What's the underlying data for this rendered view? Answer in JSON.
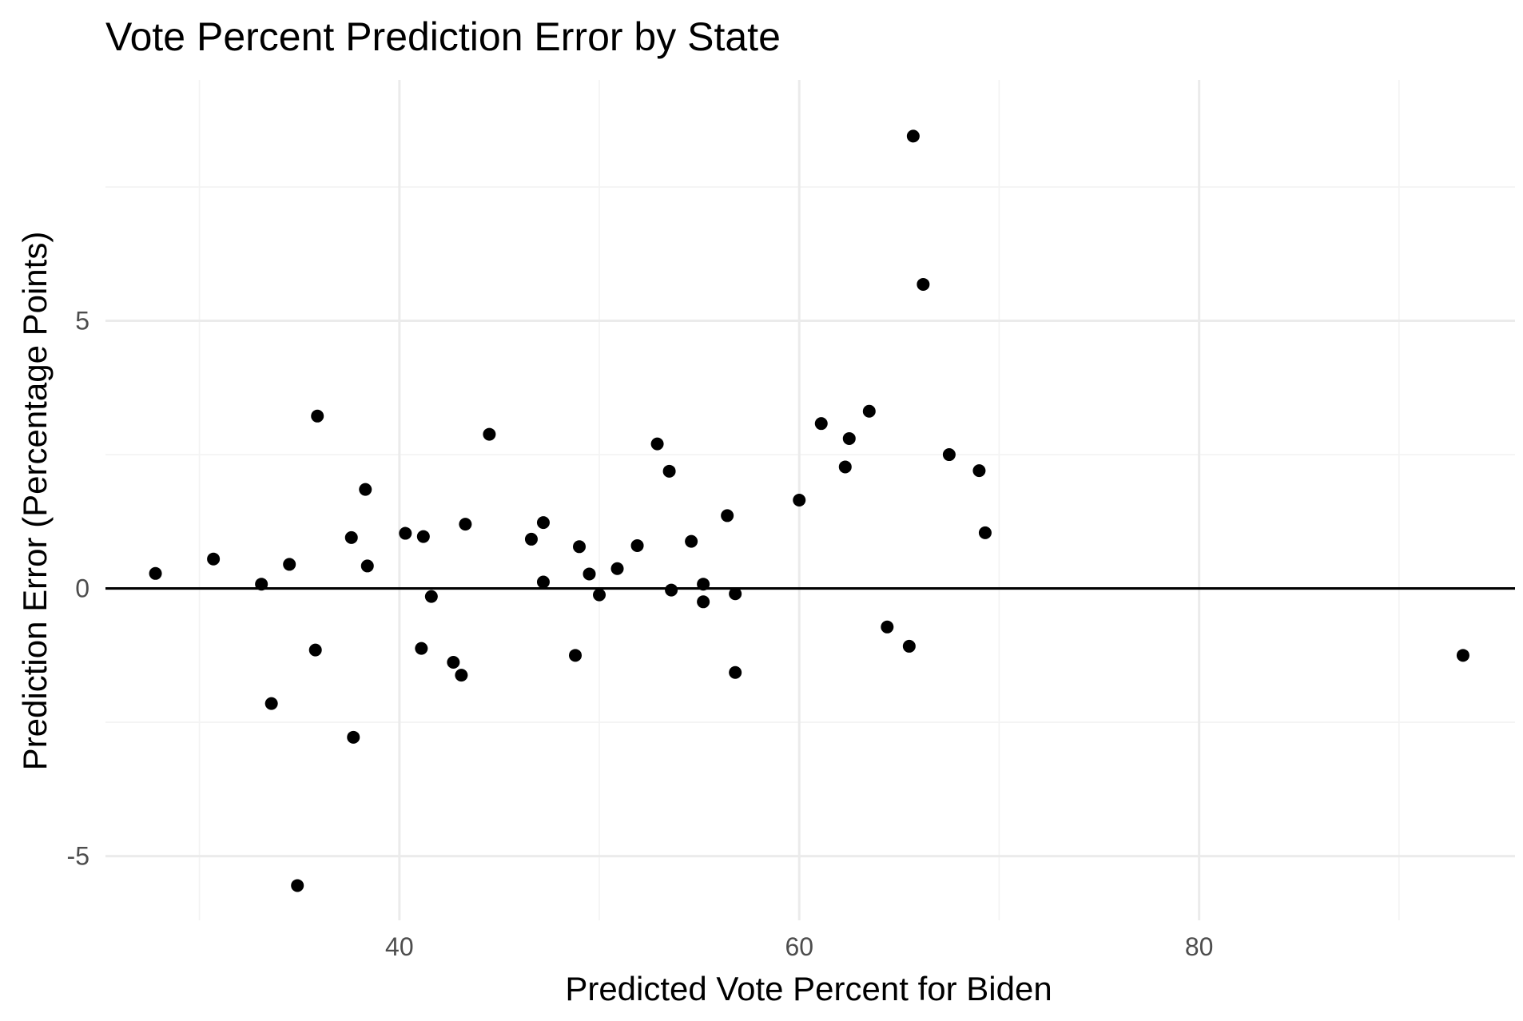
{
  "chart_data": {
    "type": "scatter",
    "title": "Vote Percent Prediction Error by State",
    "xlabel": "Predicted Vote Percent for Biden",
    "ylabel": "Prediction Error (Percentage Points)",
    "xlim": [
      25.3,
      95.8
    ],
    "ylim": [
      -6.2,
      9.5
    ],
    "x_ticks": [
      40,
      60,
      80
    ],
    "x_tick_labels": [
      "40",
      "60",
      "80"
    ],
    "y_ticks": [
      -5,
      0,
      5
    ],
    "y_tick_labels": [
      "-5",
      "0",
      "5"
    ],
    "x_minor_grid": [
      30,
      50,
      70,
      90
    ],
    "y_minor_grid": [
      -2.5,
      2.5,
      7.5
    ],
    "grid": true,
    "reference_line": {
      "y": 0,
      "color": "#000000"
    },
    "point_color": "#000000",
    "background": "#ffffff",
    "points": [
      {
        "x": 27.8,
        "y": 0.28
      },
      {
        "x": 30.7,
        "y": 0.55
      },
      {
        "x": 33.1,
        "y": 0.08
      },
      {
        "x": 33.6,
        "y": -2.15
      },
      {
        "x": 34.5,
        "y": 0.45
      },
      {
        "x": 34.9,
        "y": -5.55
      },
      {
        "x": 35.8,
        "y": -1.15
      },
      {
        "x": 35.9,
        "y": 3.22
      },
      {
        "x": 37.6,
        "y": 0.95
      },
      {
        "x": 37.7,
        "y": -2.78
      },
      {
        "x": 38.3,
        "y": 1.85
      },
      {
        "x": 38.4,
        "y": 0.42
      },
      {
        "x": 40.3,
        "y": 1.03
      },
      {
        "x": 41.1,
        "y": -1.12
      },
      {
        "x": 41.2,
        "y": 0.97
      },
      {
        "x": 41.6,
        "y": -0.15
      },
      {
        "x": 42.7,
        "y": -1.38
      },
      {
        "x": 43.1,
        "y": -1.62
      },
      {
        "x": 43.3,
        "y": 1.2
      },
      {
        "x": 44.5,
        "y": 2.88
      },
      {
        "x": 46.6,
        "y": 0.92
      },
      {
        "x": 47.2,
        "y": 1.23
      },
      {
        "x": 47.2,
        "y": 0.12
      },
      {
        "x": 48.8,
        "y": -1.25
      },
      {
        "x": 49.0,
        "y": 0.78
      },
      {
        "x": 49.5,
        "y": 0.27
      },
      {
        "x": 50.0,
        "y": -0.12
      },
      {
        "x": 50.9,
        "y": 0.37
      },
      {
        "x": 51.9,
        "y": 0.8
      },
      {
        "x": 52.9,
        "y": 2.7
      },
      {
        "x": 53.5,
        "y": 2.19
      },
      {
        "x": 53.6,
        "y": -0.03
      },
      {
        "x": 54.6,
        "y": 0.88
      },
      {
        "x": 55.2,
        "y": 0.08
      },
      {
        "x": 55.2,
        "y": -0.25
      },
      {
        "x": 56.4,
        "y": 1.36
      },
      {
        "x": 56.8,
        "y": -0.1
      },
      {
        "x": 56.8,
        "y": -1.57
      },
      {
        "x": 60.0,
        "y": 1.65
      },
      {
        "x": 61.1,
        "y": 3.08
      },
      {
        "x": 62.3,
        "y": 2.27
      },
      {
        "x": 62.5,
        "y": 2.8
      },
      {
        "x": 63.5,
        "y": 3.31
      },
      {
        "x": 64.4,
        "y": -0.72
      },
      {
        "x": 65.5,
        "y": -1.08
      },
      {
        "x": 65.7,
        "y": 8.45
      },
      {
        "x": 66.2,
        "y": 5.68
      },
      {
        "x": 67.5,
        "y": 2.5
      },
      {
        "x": 69.0,
        "y": 2.2
      },
      {
        "x": 69.3,
        "y": 1.04
      },
      {
        "x": 93.2,
        "y": -1.25
      }
    ]
  }
}
